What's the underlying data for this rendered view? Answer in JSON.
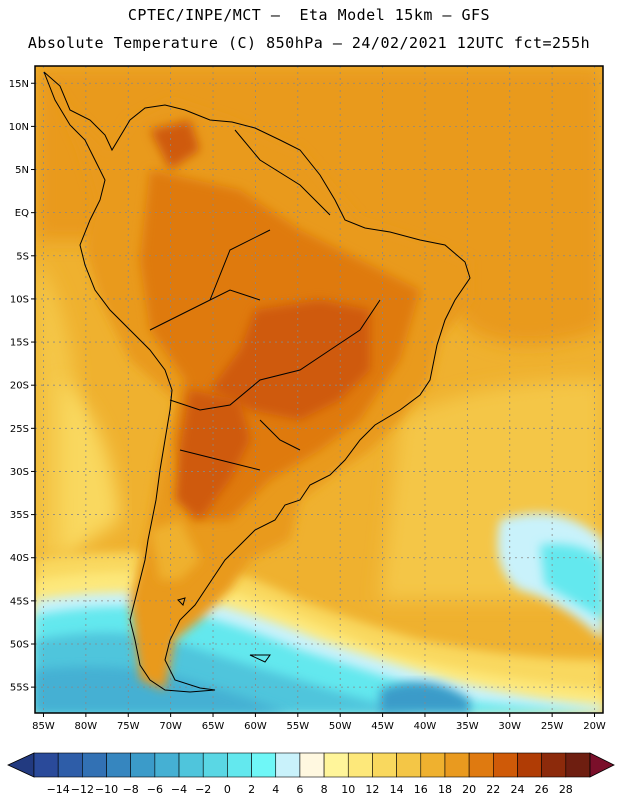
{
  "header": {
    "line1": "CPTEC/INPE/MCT –  Eta Model 15km – GFS",
    "line2": "Absolute Temperature (C) 850hPa – 24/02/2021 12UTC fct=255h"
  },
  "map": {
    "lat_labels": [
      "15N",
      "10N",
      "5N",
      "EQ",
      "5S",
      "10S",
      "15S",
      "20S",
      "25S",
      "30S",
      "35S",
      "40S",
      "45S",
      "50S",
      "55S"
    ],
    "lon_labels": [
      "85W",
      "80W",
      "75W",
      "70W",
      "65W",
      "60W",
      "55W",
      "50W",
      "45W",
      "40W",
      "35W",
      "30W",
      "25W",
      "20W"
    ],
    "lat_values": [
      15,
      10,
      5,
      0,
      -5,
      -10,
      -15,
      -20,
      -25,
      -30,
      -35,
      -40,
      -45,
      -50,
      -55
    ],
    "lon_values": [
      -85,
      -80,
      -75,
      -70,
      -65,
      -60,
      -55,
      -50,
      -45,
      -40,
      -35,
      -30,
      -25,
      -20
    ],
    "lon_range": [
      -86,
      -19
    ],
    "lat_range": [
      -58,
      17
    ]
  },
  "colorbar": {
    "labels": [
      "-14",
      "-12",
      "-10",
      "-8",
      "-6",
      "-4",
      "-2",
      "0",
      "2",
      "4",
      "6",
      "8",
      "10",
      "12",
      "14",
      "16",
      "18",
      "20",
      "22",
      "24",
      "26",
      "28"
    ],
    "colors": [
      "#2a4a9a",
      "#2e5da8",
      "#3271b4",
      "#3686bf",
      "#3b9bc9",
      "#45b0d3",
      "#4fc5dc",
      "#5ad7e4",
      "#63e8ee",
      "#6ff7f7",
      "#c9f2fb",
      "#fff8e0",
      "#fff59a",
      "#fde87a",
      "#f9d85e",
      "#f4c646",
      "#efb12f",
      "#e99a1f",
      "#df7a10",
      "#cf5a08",
      "#b03c05",
      "#8c2a0b",
      "#6e1e10"
    ],
    "min_color": "#223a80",
    "max_color": "#7a0f2a"
  }
}
